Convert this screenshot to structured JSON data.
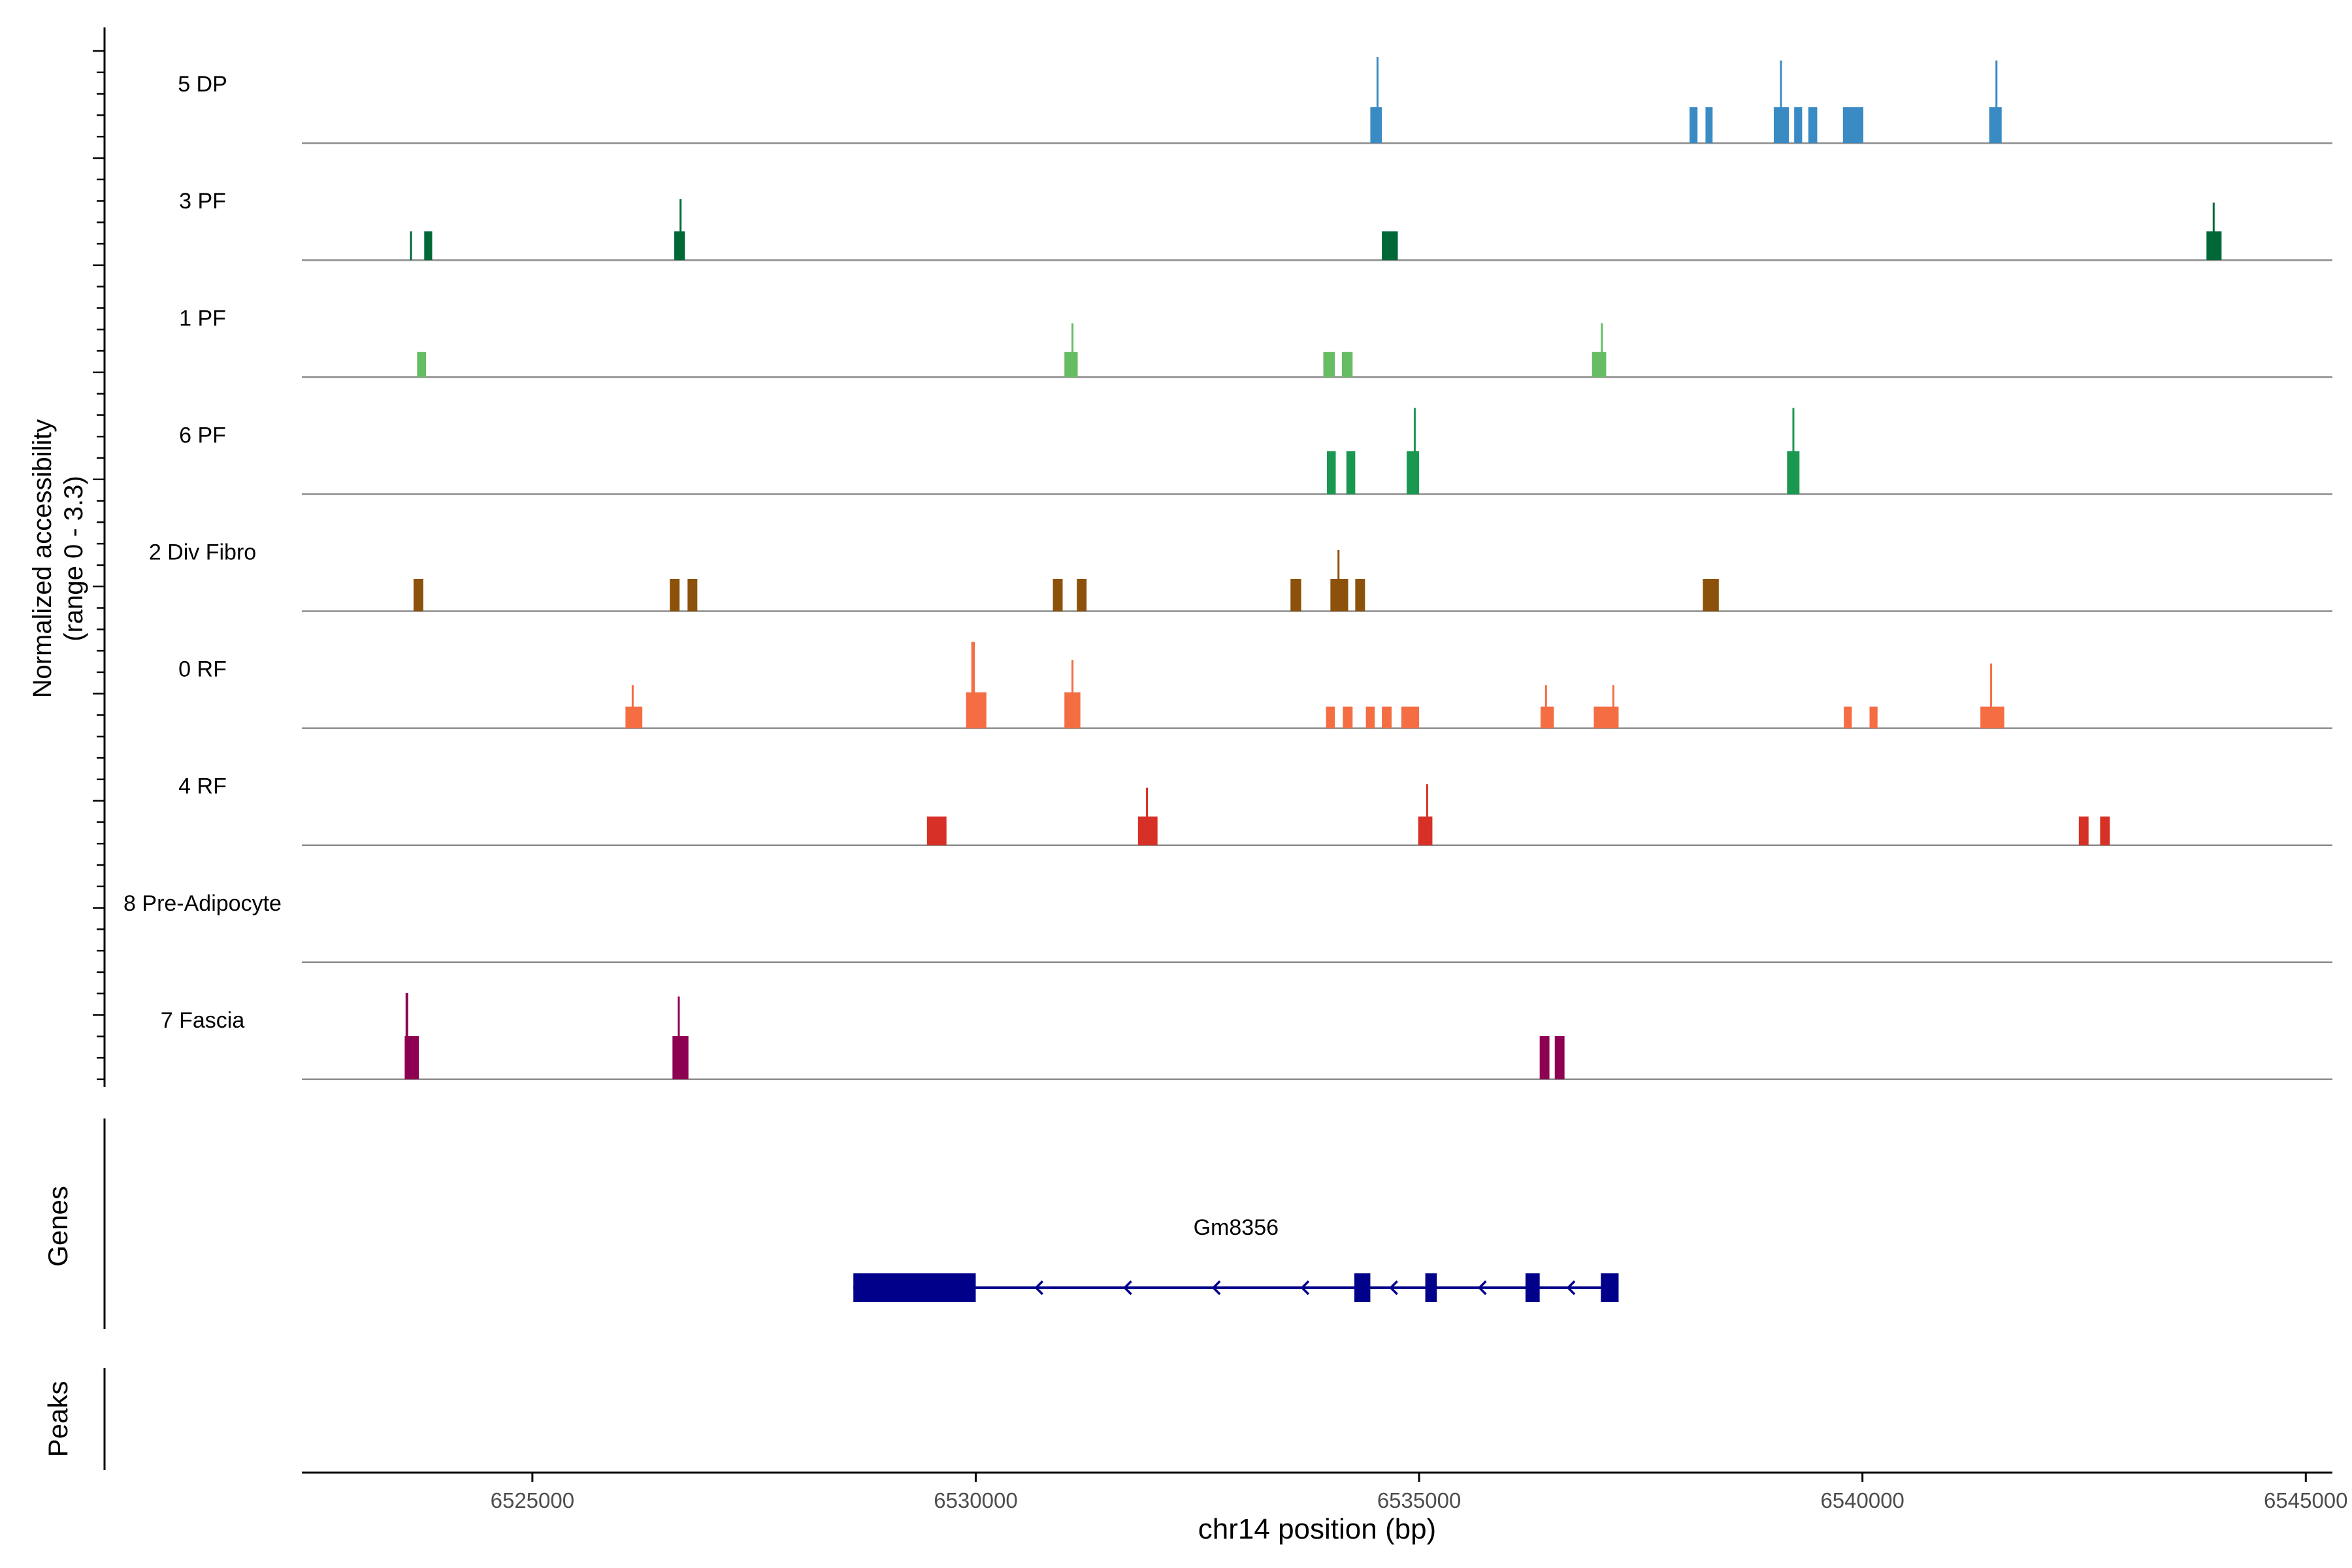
{
  "chart_data": {
    "type": "coverage",
    "title": "",
    "xlabel": "chr14 position (bp)",
    "ylabel_tracks": "Normalized accessibility",
    "ylabel_range": "(range 0 - 3.3)",
    "genes_label": "Genes",
    "peaks_label": "Peaks",
    "xlim": [
      6522400,
      6545300
    ],
    "ylim": [
      0,
      3.3
    ],
    "x_ticks": [
      6525000,
      6530000,
      6535000,
      6540000,
      6545000
    ],
    "x_tick_labels": [
      "6525000",
      "6530000",
      "6535000",
      "6540000",
      "6545000"
    ],
    "tracks": [
      {
        "name": "5 DP",
        "color": "#3a8bc4",
        "peaks": [
          [
            6534450,
            6534580,
            1.0
          ],
          [
            6534520,
            6534540,
            2.4
          ],
          [
            6538050,
            6538140,
            1.0
          ],
          [
            6538230,
            6538310,
            1.0
          ],
          [
            6539000,
            6539170,
            1.0
          ],
          [
            6539070,
            6539090,
            2.3
          ],
          [
            6539230,
            6539320,
            1.0
          ],
          [
            6539390,
            6539490,
            1.0
          ],
          [
            6539780,
            6540010,
            1.0
          ],
          [
            6541430,
            6541570,
            1.0
          ],
          [
            6541500,
            6541520,
            2.3
          ]
        ]
      },
      {
        "name": "3 PF",
        "color": "#006837",
        "peaks": [
          [
            6523620,
            6523640,
            0.8
          ],
          [
            6523780,
            6523870,
            0.8
          ],
          [
            6526600,
            6526720,
            0.8
          ],
          [
            6526660,
            6526680,
            1.7
          ],
          [
            6534580,
            6534760,
            0.8
          ],
          [
            6543880,
            6544050,
            0.8
          ],
          [
            6543950,
            6543970,
            1.6
          ]
        ]
      },
      {
        "name": "1 PF",
        "color": "#66bd63",
        "peaks": [
          [
            6523700,
            6523800,
            0.7
          ],
          [
            6531000,
            6531150,
            0.7
          ],
          [
            6531080,
            6531100,
            1.5
          ],
          [
            6533920,
            6534050,
            0.7
          ],
          [
            6534130,
            6534250,
            0.7
          ],
          [
            6536950,
            6537110,
            0.7
          ],
          [
            6537050,
            6537070,
            1.5
          ]
        ]
      },
      {
        "name": "6 PF",
        "color": "#1a9850",
        "peaks": [
          [
            6533960,
            6534060,
            1.2
          ],
          [
            6534180,
            6534280,
            1.2
          ],
          [
            6534860,
            6535000,
            1.2
          ],
          [
            6534940,
            6534960,
            2.4
          ],
          [
            6539150,
            6539290,
            1.2
          ],
          [
            6539210,
            6539230,
            2.4
          ]
        ]
      },
      {
        "name": "2 Div Fibro",
        "color": "#8c510a",
        "peaks": [
          [
            6523660,
            6523770,
            0.9
          ],
          [
            6526550,
            6526660,
            0.9
          ],
          [
            6526750,
            6526860,
            0.9
          ],
          [
            6530870,
            6530980,
            0.9
          ],
          [
            6531140,
            6531250,
            0.9
          ],
          [
            6533550,
            6533670,
            0.9
          ],
          [
            6534000,
            6534200,
            0.9
          ],
          [
            6534080,
            6534100,
            1.7
          ],
          [
            6534280,
            6534390,
            0.9
          ],
          [
            6538200,
            6538380,
            0.9
          ]
        ]
      },
      {
        "name": "0 RF",
        "color": "#f46d43",
        "peaks": [
          [
            6526050,
            6526240,
            0.6
          ],
          [
            6526120,
            6526140,
            1.2
          ],
          [
            6529890,
            6530120,
            1.0
          ],
          [
            6529950,
            6529990,
            2.4
          ],
          [
            6531000,
            6531180,
            1.0
          ],
          [
            6531080,
            6531100,
            1.9
          ],
          [
            6533950,
            6534050,
            0.6
          ],
          [
            6534140,
            6534250,
            0.6
          ],
          [
            6534400,
            6534500,
            0.6
          ],
          [
            6534580,
            6534690,
            0.6
          ],
          [
            6534800,
            6535000,
            0.6
          ],
          [
            6536370,
            6536520,
            0.6
          ],
          [
            6536420,
            6536440,
            1.2
          ],
          [
            6536970,
            6537250,
            0.6
          ],
          [
            6537180,
            6537200,
            1.2
          ],
          [
            6539790,
            6539880,
            0.6
          ],
          [
            6540080,
            6540170,
            0.6
          ],
          [
            6541330,
            6541600,
            0.6
          ],
          [
            6541440,
            6541460,
            1.8
          ]
        ]
      },
      {
        "name": "4 RF",
        "color": "#d73027",
        "peaks": [
          [
            6529450,
            6529670,
            0.8
          ],
          [
            6531830,
            6532050,
            0.8
          ],
          [
            6531920,
            6531940,
            1.6
          ],
          [
            6534990,
            6535150,
            0.8
          ],
          [
            6535080,
            6535100,
            1.7
          ],
          [
            6542440,
            6542550,
            0.8
          ],
          [
            6542680,
            6542790,
            0.8
          ]
        ]
      },
      {
        "name": "8 Pre-Adipocyte",
        "color": "#7b3294",
        "peaks": []
      },
      {
        "name": "7 Fascia",
        "color": "#8e0152",
        "peaks": [
          [
            6523560,
            6523720,
            1.2
          ],
          [
            6523570,
            6523600,
            2.4
          ],
          [
            6526580,
            6526760,
            1.2
          ],
          [
            6526640,
            6526660,
            2.3
          ],
          [
            6536360,
            6536470,
            1.2
          ],
          [
            6536530,
            6536640,
            1.2
          ]
        ]
      }
    ],
    "gene": {
      "name": "Gm8356",
      "strand": "-",
      "color": "#00008b",
      "start": 6528620,
      "end": 6537250,
      "exons": [
        [
          6528620,
          6530000
        ],
        [
          6534270,
          6534450
        ],
        [
          6535070,
          6535200
        ],
        [
          6536200,
          6536360
        ],
        [
          6537050,
          6537250
        ]
      ],
      "arrows": [
        6530680,
        6531680,
        6532680,
        6533680,
        6534680,
        6535680,
        6536680
      ]
    }
  }
}
